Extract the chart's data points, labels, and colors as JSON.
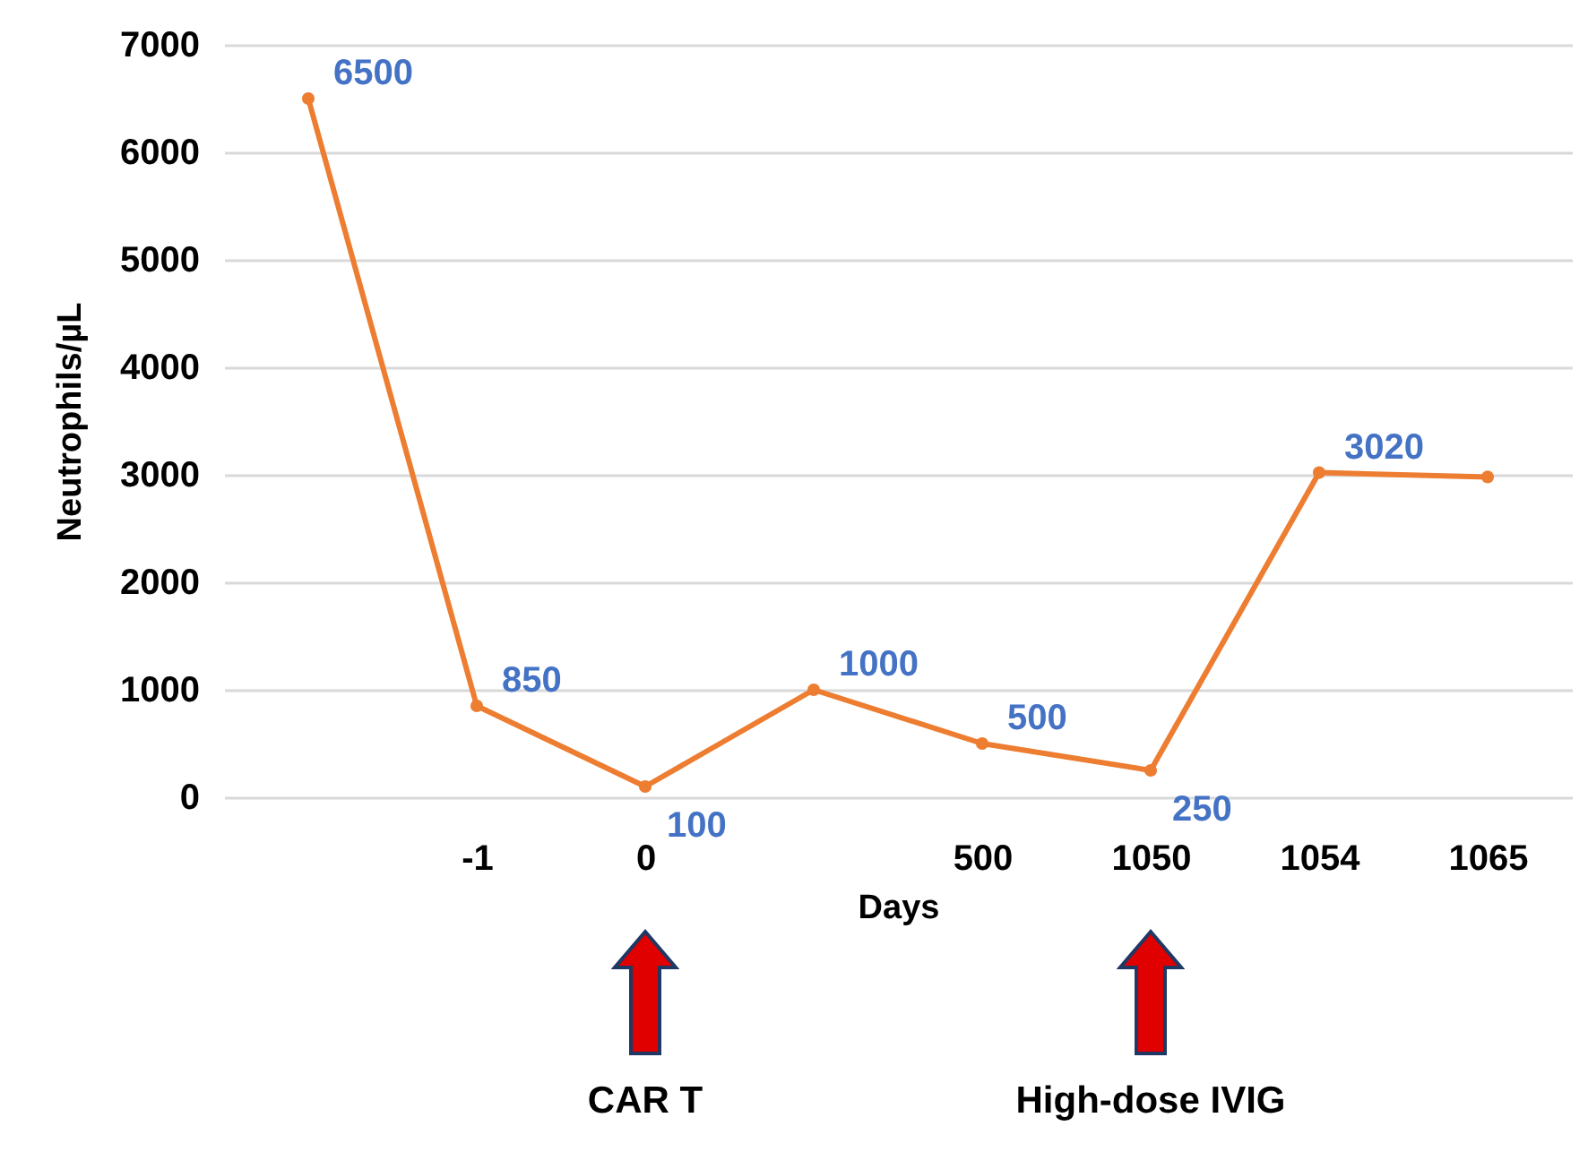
{
  "chart_data": {
    "type": "line",
    "xlabel": "Days",
    "ylabel": "Neutrophils/µL",
    "categories": [
      null,
      "-1",
      "0",
      null,
      "500",
      "1050",
      "1054",
      "1065"
    ],
    "series": [
      {
        "color": "#ed7d31",
        "values": [
          6500,
          850,
          100,
          1000,
          500,
          250,
          3020,
          2980
        ],
        "value_labels": [
          "6500",
          "850",
          "100",
          "1000",
          "500",
          "250",
          "3020",
          null
        ]
      }
    ],
    "ylim": [
      0,
      7000
    ],
    "yticks": [
      0,
      1000,
      2000,
      3000,
      4000,
      5000,
      6000,
      7000
    ],
    "grid": "y",
    "marker": "circle",
    "annotations": [
      "CAR T",
      "High-dose IVIG"
    ]
  }
}
